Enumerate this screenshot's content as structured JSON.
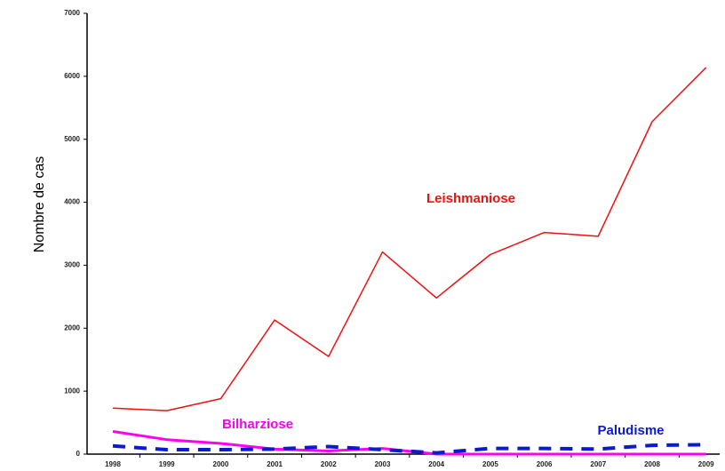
{
  "chart_data": {
    "type": "line",
    "y_label": "Nombre de cas",
    "categories": [
      "1998",
      "1999",
      "2000",
      "2001",
      "2002",
      "2003",
      "2004",
      "2005",
      "2006",
      "2007",
      "2008",
      "2009"
    ],
    "series": [
      {
        "name": "Leishmaniose",
        "color": "#ee1111",
        "values": [
          730,
          690,
          880,
          2130,
          1550,
          3210,
          2480,
          3170,
          3520,
          3460,
          5280,
          6140
        ]
      },
      {
        "name": "Bilharziose",
        "color": "#ff00ee",
        "values": [
          360,
          230,
          170,
          80,
          50,
          90,
          0,
          0,
          0,
          0,
          0,
          0
        ]
      },
      {
        "name": "Paludisme",
        "color": "#0a1ad0",
        "values": [
          130,
          70,
          70,
          80,
          120,
          70,
          20,
          90,
          90,
          80,
          140,
          150
        ]
      }
    ],
    "ylim": [
      0,
      7000
    ],
    "yticks": [
      0,
      1000,
      2000,
      3000,
      4000,
      5000,
      6000,
      7000
    ]
  }
}
